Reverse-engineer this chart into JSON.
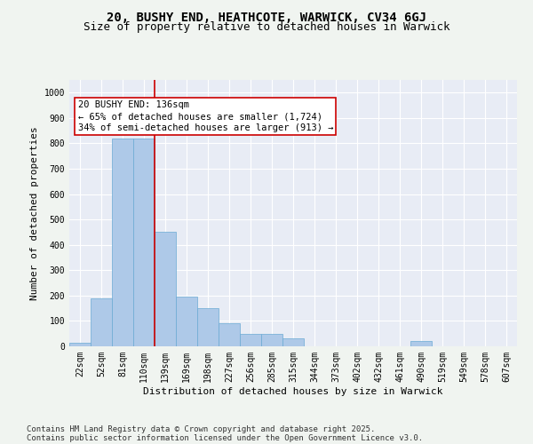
{
  "title_line1": "20, BUSHY END, HEATHCOTE, WARWICK, CV34 6GJ",
  "title_line2": "Size of property relative to detached houses in Warwick",
  "xlabel": "Distribution of detached houses by size in Warwick",
  "ylabel": "Number of detached properties",
  "bar_color": "#aec9e8",
  "bar_edge_color": "#6aaad4",
  "background_color": "#e8ecf5",
  "grid_color": "#ffffff",
  "categories": [
    "22sqm",
    "52sqm",
    "81sqm",
    "110sqm",
    "139sqm",
    "169sqm",
    "198sqm",
    "227sqm",
    "256sqm",
    "285sqm",
    "315sqm",
    "344sqm",
    "373sqm",
    "402sqm",
    "432sqm",
    "461sqm",
    "490sqm",
    "519sqm",
    "549sqm",
    "578sqm",
    "607sqm"
  ],
  "values": [
    15,
    190,
    820,
    820,
    450,
    195,
    150,
    90,
    50,
    50,
    30,
    0,
    0,
    0,
    0,
    0,
    20,
    0,
    0,
    0,
    0
  ],
  "ylim": [
    0,
    1050
  ],
  "yticks": [
    0,
    100,
    200,
    300,
    400,
    500,
    600,
    700,
    800,
    900,
    1000
  ],
  "vline_x_index": 3.5,
  "annotation_text": "20 BUSHY END: 136sqm\n← 65% of detached houses are smaller (1,724)\n34% of semi-detached houses are larger (913) →",
  "annotation_box_color": "#ffffff",
  "annotation_border_color": "#cc0000",
  "vline_color": "#cc0000",
  "footer_line1": "Contains HM Land Registry data © Crown copyright and database right 2025.",
  "footer_line2": "Contains public sector information licensed under the Open Government Licence v3.0.",
  "title_fontsize": 10,
  "subtitle_fontsize": 9,
  "axis_label_fontsize": 8,
  "tick_fontsize": 7,
  "annotation_fontsize": 7.5,
  "footer_fontsize": 6.5,
  "fig_bg": "#f0f4f0"
}
